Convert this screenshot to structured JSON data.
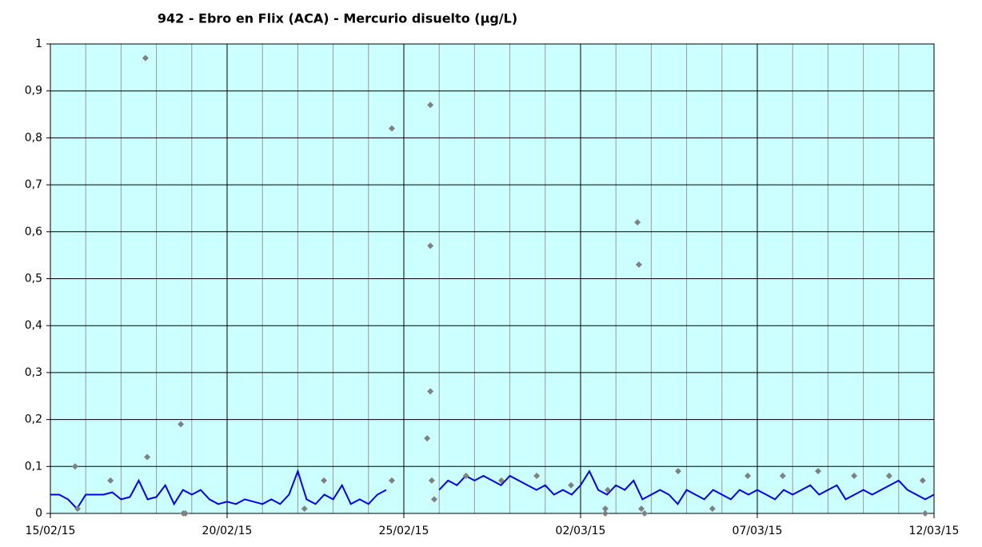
{
  "chart_data": {
    "type": "line",
    "title": "942 - Ebro en Flix (ACA) - Mercurio disuelto (µg/L)",
    "xlim": [
      0,
      25
    ],
    "xticks": [
      {
        "value": 0,
        "label": "15/02/15"
      },
      {
        "value": 5,
        "label": "20/02/15"
      },
      {
        "value": 10,
        "label": "25/02/15"
      },
      {
        "value": 15,
        "label": "02/03/15"
      },
      {
        "value": 20,
        "label": "07/03/15"
      },
      {
        "value": 25,
        "label": "12/03/15"
      }
    ],
    "ylim": [
      0,
      1
    ],
    "yticks": [
      0,
      {
        "value": 0.1,
        "label": "0,1"
      },
      {
        "value": 0.2,
        "label": "0,2"
      },
      {
        "value": 0.3,
        "label": "0,3"
      },
      {
        "value": 0.4,
        "label": "0,4"
      },
      {
        "value": 0.5,
        "label": "0,5"
      },
      {
        "value": 0.6,
        "label": "0,6"
      },
      {
        "value": 0.7,
        "label": "0,7"
      },
      {
        "value": 0.8,
        "label": "0,8"
      },
      {
        "value": 0.9,
        "label": "0,9"
      },
      1
    ],
    "grid": true,
    "background": "#ccffff",
    "series": [
      {
        "type": "line",
        "color": "#0000ff",
        "x": [
          0,
          0.25,
          0.5,
          0.75,
          1,
          1.25,
          1.5,
          1.75,
          2,
          2.25,
          2.5,
          2.75,
          3,
          3.25,
          3.5,
          3.75,
          4,
          4.25,
          4.5,
          4.75,
          5,
          5.25,
          5.5,
          5.75,
          6,
          6.25,
          6.5,
          6.75,
          7,
          7.25,
          7.5,
          7.75,
          8,
          8.25,
          8.5,
          8.75,
          9,
          9.25,
          9.5,
          9.75,
          10,
          10.25,
          10.5,
          10.75,
          11,
          11.25,
          11.5,
          11.75,
          12,
          12.25,
          12.5,
          12.75,
          13,
          13.25,
          13.5,
          13.75,
          14,
          14.25,
          14.5,
          14.75,
          15,
          15.25,
          15.5,
          15.75,
          16,
          16.25,
          16.5,
          16.75,
          17,
          17.25,
          17.5,
          17.75,
          18,
          18.25,
          18.5,
          18.75,
          19,
          19.25,
          19.5,
          19.75,
          20,
          20.25,
          20.5,
          20.75,
          21,
          21.25,
          21.5,
          21.75,
          22,
          22.25,
          22.5,
          22.75,
          23,
          23.25,
          23.5,
          23.75,
          24,
          24.25,
          24.5,
          24.75,
          25
        ],
        "values": [
          0.04,
          0.04,
          0.03,
          0.01,
          0.04,
          0.04,
          0.04,
          0.045,
          0.03,
          0.035,
          0.07,
          0.03,
          0.035,
          0.06,
          0.02,
          0.05,
          0.04,
          0.05,
          0.03,
          0.02,
          0.025,
          0.02,
          0.03,
          0.025,
          0.02,
          0.03,
          0.02,
          0.04,
          0.09,
          0.03,
          0.02,
          0.04,
          0.03,
          0.06,
          0.02,
          0.03,
          0.02,
          0.04,
          0.05,
          null,
          null,
          null,
          null,
          null,
          0.05,
          0.07,
          0.06,
          0.08,
          0.07,
          0.08,
          0.07,
          0.06,
          0.08,
          0.07,
          0.06,
          0.05,
          0.06,
          0.04,
          0.05,
          0.04,
          0.06,
          0.09,
          0.05,
          0.04,
          0.06,
          0.05,
          0.07,
          0.03,
          0.04,
          0.05,
          0.04,
          0.02,
          0.05,
          0.04,
          0.03,
          0.05,
          0.04,
          0.03,
          0.05,
          0.04,
          0.05,
          0.04,
          0.03,
          0.05,
          0.04,
          0.05,
          0.06,
          0.04,
          0.05,
          0.06,
          0.03,
          0.04,
          0.05,
          0.04,
          0.05,
          0.06,
          0.07,
          0.05,
          0.04,
          0.03,
          0.04
        ]
      },
      {
        "type": "scatter",
        "color": "#808080",
        "x": [
          0.7,
          0.77,
          1.7,
          2.69,
          2.74,
          3.69,
          3.76,
          3.82,
          7.19,
          7.74,
          9.66,
          9.66,
          10.66,
          10.75,
          10.75,
          10.75,
          10.79,
          10.86,
          11.76,
          12.76,
          13.76,
          14.73,
          15.7,
          15.7,
          15.77,
          16.61,
          16.65,
          16.72,
          16.81,
          17.76,
          18.73,
          19.73,
          20.72,
          21.72,
          22.74,
          23.73,
          24.68,
          24.75
        ],
        "values": [
          0.1,
          0.01,
          0.07,
          0.97,
          0.12,
          0.19,
          0,
          0,
          0.01,
          0.07,
          0.82,
          0.07,
          0.16,
          0.87,
          0.57,
          0.26,
          0.07,
          0.03,
          0.08,
          0.07,
          0.08,
          0.06,
          0.01,
          0,
          0.05,
          0.62,
          0.53,
          0.01,
          0,
          0.09,
          0.01,
          0.08,
          0.08,
          0.09,
          0.08,
          0.08,
          0.07,
          0
        ]
      }
    ]
  }
}
